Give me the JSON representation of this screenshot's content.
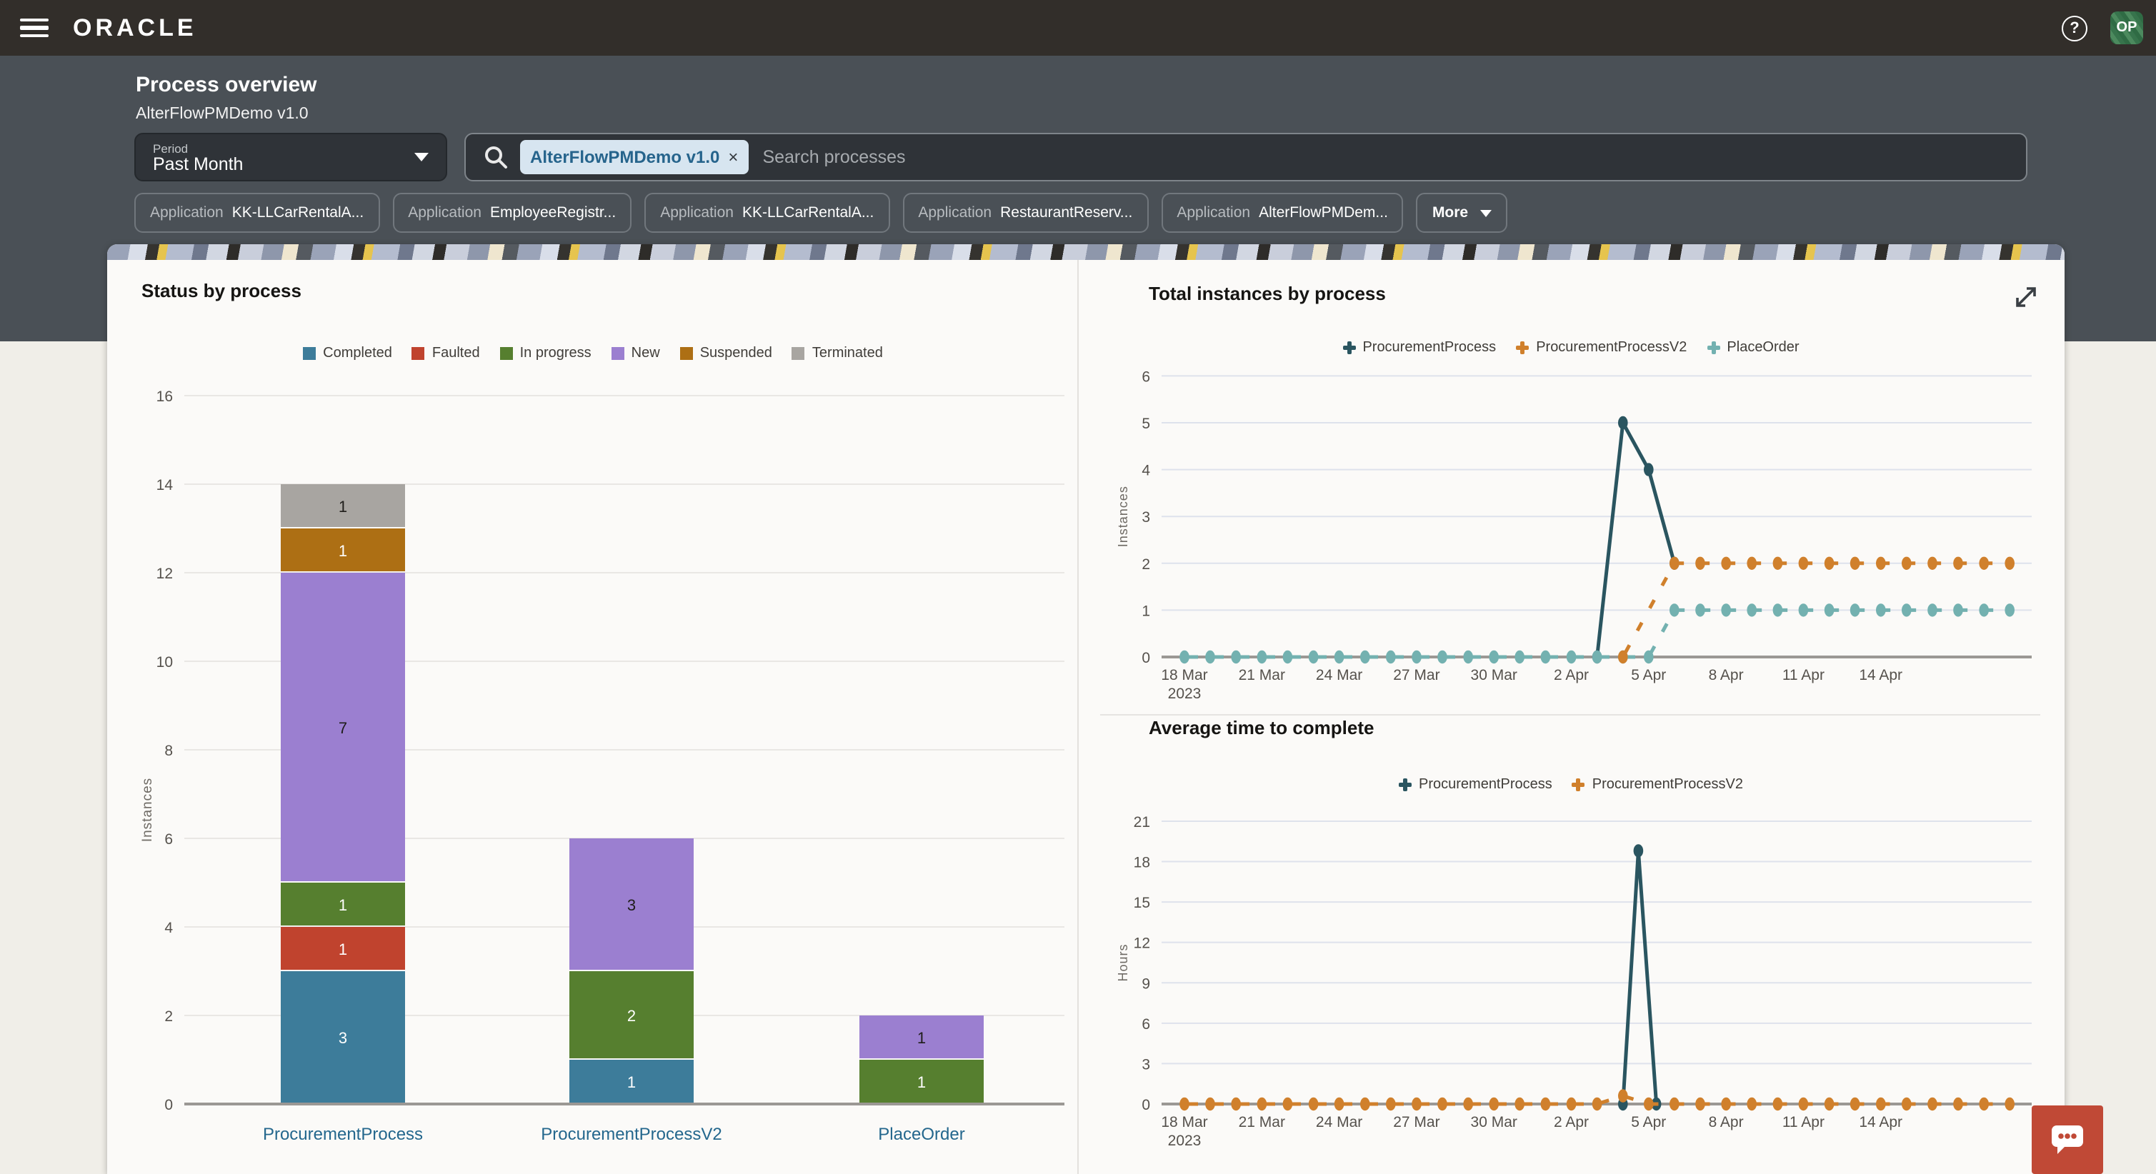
{
  "topbar": {
    "brand": "ORACLE",
    "avatar": "OP"
  },
  "header": {
    "title": "Process overview",
    "subtitle": "AlterFlowPMDemo v1.0",
    "period": {
      "label": "Period",
      "value": "Past Month"
    },
    "search": {
      "chip": "AlterFlowPMDemo v1.0",
      "chip_remove": "×",
      "placeholder": "Search processes"
    },
    "filters": [
      {
        "label": "Application",
        "value": "KK-LLCarRentalA..."
      },
      {
        "label": "Application",
        "value": "EmployeeRegistr..."
      },
      {
        "label": "Application",
        "value": "KK-LLCarRentalA..."
      },
      {
        "label": "Application",
        "value": "RestaurantReserv..."
      },
      {
        "label": "Application",
        "value": "AlterFlowPMDem..."
      }
    ],
    "more_label": "More"
  },
  "colors": {
    "accent_link": "#24678D",
    "status_red": "#C04936",
    "grid_warm": "#E9E7E4",
    "grid_cool": "#DEE2EC",
    "axis_line": "#9B9894",
    "tick_text": "#55514C"
  },
  "chart_data": [
    {
      "id": "status_by_process",
      "type": "bar",
      "title": "Status by process",
      "ylabel": "Instances",
      "ylim": [
        0,
        16
      ],
      "ytick_step": 2,
      "grid": true,
      "legend_position": "top",
      "categories": [
        "ProcurementProcess",
        "ProcurementProcessV2",
        "PlaceOrder"
      ],
      "series": [
        {
          "name": "Completed",
          "color": "#3D7C9A",
          "label_color": "#FFFFFF",
          "values": [
            3,
            1,
            0
          ]
        },
        {
          "name": "Faulted",
          "color": "#C0432E",
          "label_color": "#FFFFFF",
          "values": [
            1,
            0,
            0
          ]
        },
        {
          "name": "In progress",
          "color": "#567F2F",
          "label_color": "#FFFFFF",
          "values": [
            1,
            2,
            1
          ]
        },
        {
          "name": "New",
          "color": "#9B7FD0",
          "label_color": "#1F1D1A",
          "values": [
            7,
            3,
            1
          ]
        },
        {
          "name": "Suspended",
          "color": "#AD6F14",
          "label_color": "#FFFFFF",
          "values": [
            1,
            0,
            0
          ]
        },
        {
          "name": "Terminated",
          "color": "#A8A5A1",
          "label_color": "#1F1D1A",
          "values": [
            1,
            0,
            0
          ]
        }
      ]
    },
    {
      "id": "total_instances_by_process",
      "type": "line",
      "title": "Total instances by process",
      "ylabel": "Instances",
      "ylim": [
        0,
        6
      ],
      "ytick_step": 1,
      "grid": true,
      "legend_position": "top",
      "x_start_label": "18 Mar 2023",
      "x_ticks": [
        {
          "i": 0,
          "label": "18 Mar",
          "sub": "2023"
        },
        {
          "i": 3,
          "label": "21 Mar"
        },
        {
          "i": 6,
          "label": "24 Mar"
        },
        {
          "i": 9,
          "label": "27 Mar"
        },
        {
          "i": 12,
          "label": "30 Mar"
        },
        {
          "i": 15,
          "label": "2 Apr"
        },
        {
          "i": 18,
          "label": "5 Apr"
        },
        {
          "i": 21,
          "label": "8 Apr"
        },
        {
          "i": 24,
          "label": "11 Apr"
        },
        {
          "i": 27,
          "label": "14 Apr"
        }
      ],
      "n_points": 33,
      "series": [
        {
          "name": "ProcurementProcess",
          "color": "#2A5560",
          "dashed": false,
          "values": [
            null,
            null,
            null,
            null,
            null,
            null,
            null,
            null,
            null,
            null,
            null,
            null,
            null,
            null,
            null,
            null,
            0,
            5,
            4,
            2,
            null,
            null,
            null,
            null,
            null,
            null,
            null,
            null,
            null,
            null,
            null,
            null,
            null
          ]
        },
        {
          "name": "ProcurementProcessV2",
          "color": "#D0802C",
          "dashed": true,
          "values": [
            null,
            null,
            null,
            null,
            null,
            null,
            null,
            null,
            null,
            null,
            null,
            null,
            null,
            null,
            null,
            null,
            null,
            0,
            null,
            2,
            2,
            2,
            2,
            2,
            2,
            2,
            2,
            2,
            2,
            2,
            2,
            2,
            2
          ]
        },
        {
          "name": "PlaceOrder",
          "color": "#73B1B0",
          "dashed": true,
          "values": [
            0,
            0,
            0,
            0,
            0,
            0,
            0,
            0,
            0,
            0,
            0,
            0,
            0,
            0,
            0,
            0,
            0,
            0,
            0,
            1,
            1,
            1,
            1,
            1,
            1,
            1,
            1,
            1,
            1,
            1,
            1,
            1,
            1
          ]
        }
      ]
    },
    {
      "id": "average_time_to_complete",
      "type": "line",
      "title": "Average time to complete",
      "ylabel": "Hours",
      "ylim": [
        0,
        21
      ],
      "ytick_step": 3,
      "grid": true,
      "legend_position": "top",
      "x_ticks": [
        {
          "i": 0,
          "label": "18 Mar",
          "sub": "2023"
        },
        {
          "i": 3,
          "label": "21 Mar"
        },
        {
          "i": 6,
          "label": "24 Mar"
        },
        {
          "i": 9,
          "label": "27 Mar"
        },
        {
          "i": 12,
          "label": "30 Mar"
        },
        {
          "i": 15,
          "label": "2 Apr"
        },
        {
          "i": 18,
          "label": "5 Apr"
        },
        {
          "i": 21,
          "label": "8 Apr"
        },
        {
          "i": 24,
          "label": "11 Apr"
        },
        {
          "i": 27,
          "label": "14 Apr"
        }
      ],
      "n_points": 33,
      "series": [
        {
          "name": "ProcurementProcess",
          "color": "#2A5560",
          "dashed": false,
          "points": [
            [
              17,
              0
            ],
            [
              17.6,
              18.8
            ],
            [
              18.3,
              0
            ]
          ]
        },
        {
          "name": "ProcurementProcessV2",
          "color": "#D0802C",
          "dashed": true,
          "values": [
            0,
            0,
            0,
            0,
            0,
            0,
            0,
            0,
            0,
            0,
            0,
            0,
            0,
            0,
            0,
            0,
            0,
            0.6,
            0,
            0,
            0,
            0,
            0,
            0,
            0,
            0,
            0,
            0,
            0,
            0,
            0,
            0,
            0
          ]
        }
      ]
    }
  ]
}
